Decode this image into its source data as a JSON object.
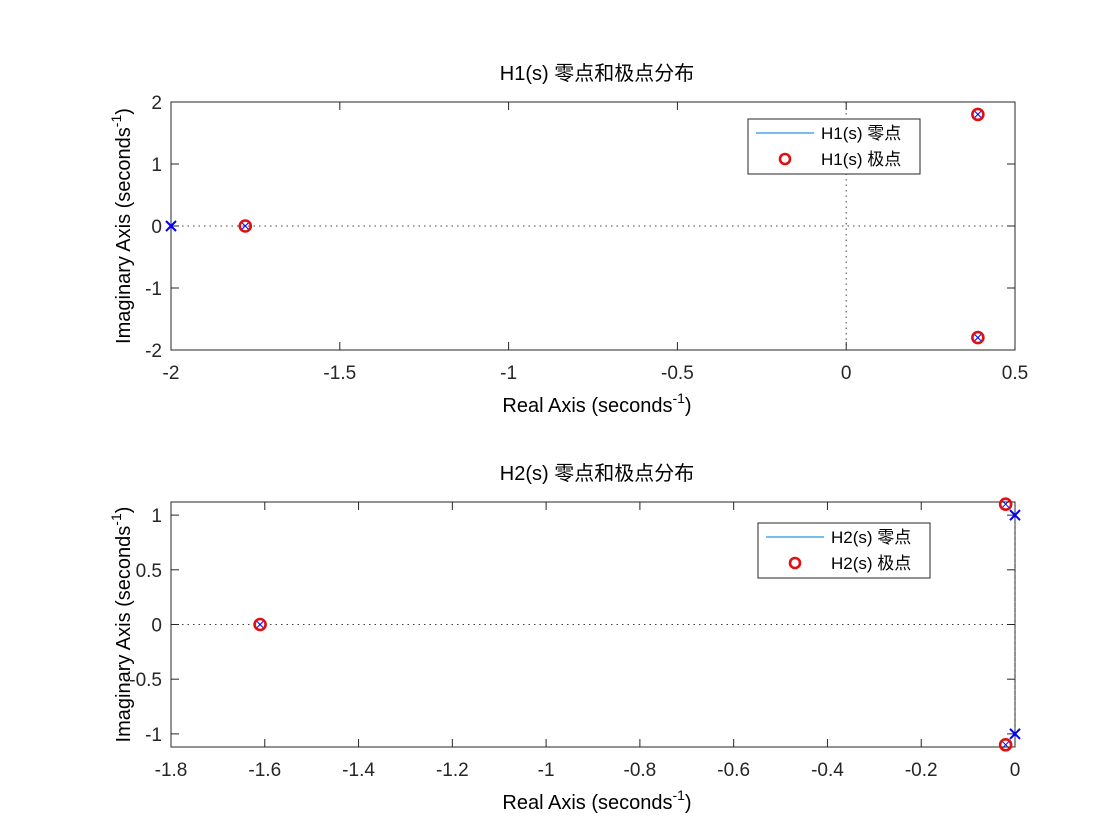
{
  "chart_data": [
    {
      "type": "scatter",
      "title": "H1(s) 零点和极点分布",
      "xlabel": "Real Axis (seconds",
      "ylabel": "Imaginary Axis (seconds",
      "label_exponent": "-1",
      "label_suffix": ")",
      "xlim": [
        -2,
        0.5
      ],
      "ylim": [
        -2,
        2
      ],
      "xticks": [
        "-2",
        "-1.5",
        "-1",
        "-0.5",
        "0",
        "0.5"
      ],
      "xtick_values": [
        -2,
        -1.5,
        -1,
        -0.5,
        0,
        0.5
      ],
      "yticks": [
        "-2",
        "-1",
        "0",
        "1",
        "2"
      ],
      "ytick_values": [
        -2,
        -1,
        0,
        1,
        2
      ],
      "grid": false,
      "legend_position": "top-right",
      "series": [
        {
          "name": "H1(s) 零点",
          "marker": "x",
          "color": "#0000ff",
          "legend_line_color": "#4DA6E8",
          "points": [
            [
              -2,
              0
            ]
          ]
        },
        {
          "name": "H1(s) 极点",
          "marker": "o",
          "color": "#e01010",
          "points": [
            [
              -1.78,
              0
            ],
            [
              0.39,
              1.8
            ],
            [
              0.39,
              -1.8
            ]
          ]
        }
      ],
      "pole_center_marker": "x",
      "pole_center_color": "#0000ff"
    },
    {
      "type": "scatter",
      "title": "H2(s) 零点和极点分布",
      "xlabel": "Real Axis (seconds",
      "ylabel": "Imaginary Axis (seconds",
      "label_exponent": "-1",
      "label_suffix": ")",
      "xlim": [
        -1.8,
        0
      ],
      "ylim": [
        -1.12,
        1.12
      ],
      "xticks": [
        "-1.8",
        "-1.6",
        "-1.4",
        "-1.2",
        "-1",
        "-0.8",
        "-0.6",
        "-0.4",
        "-0.2",
        "0"
      ],
      "xtick_values": [
        -1.8,
        -1.6,
        -1.4,
        -1.2,
        -1,
        -0.8,
        -0.6,
        -0.4,
        -0.2,
        0
      ],
      "yticks": [
        "-1",
        "-0.5",
        "0",
        "0.5",
        "1"
      ],
      "ytick_values": [
        -1,
        -0.5,
        0,
        0.5,
        1
      ],
      "grid": false,
      "legend_position": "top-right",
      "series": [
        {
          "name": "H2(s) 零点",
          "marker": "x",
          "color": "#0000ff",
          "legend_line_color": "#4DA6E8",
          "points": [
            [
              0,
              1
            ],
            [
              0,
              -1
            ]
          ]
        },
        {
          "name": "H2(s) 极点",
          "marker": "o",
          "color": "#e01010",
          "points": [
            [
              -1.61,
              0
            ],
            [
              -0.02,
              1.1
            ],
            [
              -0.02,
              -1.1
            ]
          ]
        }
      ],
      "pole_center_marker": "x",
      "pole_center_color": "#0000ff"
    }
  ]
}
